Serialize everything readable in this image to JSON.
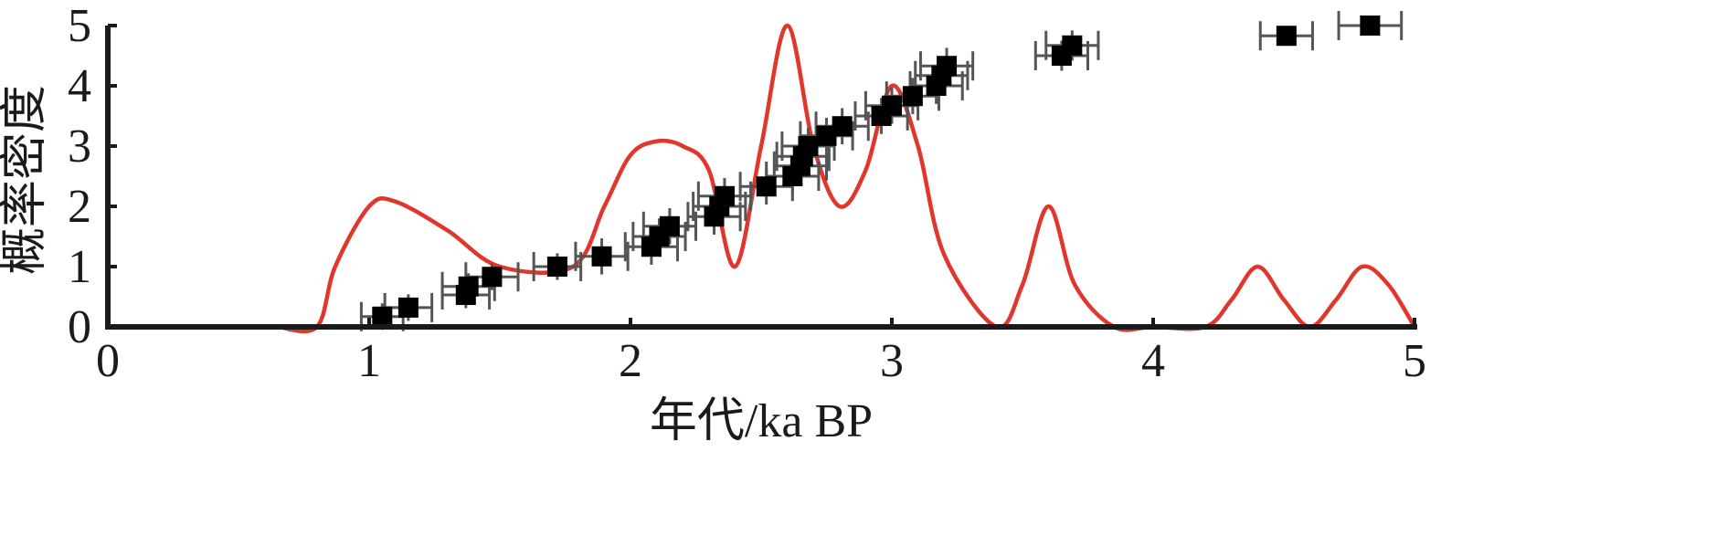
{
  "chart_data": {
    "type": "scatter",
    "title": "",
    "xlabel": "年代/ka BP",
    "ylabel": "概率密度",
    "xlim": [
      0,
      5
    ],
    "ylim": [
      0,
      5
    ],
    "x_ticks": [
      "0",
      "1",
      "2",
      "3",
      "4",
      "5"
    ],
    "y_ticks": [
      "0",
      "1",
      "2",
      "3",
      "4",
      "5"
    ],
    "grid": false,
    "legend": "none",
    "series": [
      {
        "type": "scatter",
        "color": "#000000",
        "marker": "square",
        "points": [
          {
            "x": 1.05,
            "y": 0.17,
            "xerr": 0.08,
            "yerr": 0.22
          },
          {
            "x": 1.15,
            "y": 0.32,
            "xerr": 0.09,
            "yerr": 0.22
          },
          {
            "x": 1.37,
            "y": 0.53,
            "xerr": 0.09,
            "yerr": 0.22
          },
          {
            "x": 1.38,
            "y": 0.67,
            "xerr": 0.1,
            "yerr": 0.22
          },
          {
            "x": 1.47,
            "y": 0.83,
            "xerr": 0.1,
            "yerr": 0.22
          },
          {
            "x": 1.72,
            "y": 1.0,
            "xerr": 0.09,
            "yerr": 0.22
          },
          {
            "x": 1.89,
            "y": 1.17,
            "xerr": 0.1,
            "yerr": 0.3
          },
          {
            "x": 2.08,
            "y": 1.33,
            "xerr": 0.1,
            "yerr": 0.3
          },
          {
            "x": 2.11,
            "y": 1.5,
            "xerr": 0.1,
            "yerr": 0.3
          },
          {
            "x": 2.15,
            "y": 1.67,
            "xerr": 0.1,
            "yerr": 0.3
          },
          {
            "x": 2.32,
            "y": 1.83,
            "xerr": 0.1,
            "yerr": 0.3
          },
          {
            "x": 2.34,
            "y": 2.0,
            "xerr": 0.1,
            "yerr": 0.3
          },
          {
            "x": 2.36,
            "y": 2.17,
            "xerr": 0.1,
            "yerr": 0.3
          },
          {
            "x": 2.52,
            "y": 2.33,
            "xerr": 0.1,
            "yerr": 0.3
          },
          {
            "x": 2.62,
            "y": 2.5,
            "xerr": 0.1,
            "yerr": 0.3
          },
          {
            "x": 2.65,
            "y": 2.67,
            "xerr": 0.1,
            "yerr": 0.3
          },
          {
            "x": 2.66,
            "y": 2.83,
            "xerr": 0.1,
            "yerr": 0.3
          },
          {
            "x": 2.68,
            "y": 3.0,
            "xerr": 0.1,
            "yerr": 0.3
          },
          {
            "x": 2.75,
            "y": 3.17,
            "xerr": 0.1,
            "yerr": 0.3
          },
          {
            "x": 2.81,
            "y": 3.33,
            "xerr": 0.1,
            "yerr": 0.3
          },
          {
            "x": 2.96,
            "y": 3.5,
            "xerr": 0.1,
            "yerr": 0.3
          },
          {
            "x": 3.0,
            "y": 3.67,
            "xerr": 0.1,
            "yerr": 0.3
          },
          {
            "x": 3.08,
            "y": 3.83,
            "xerr": 0.1,
            "yerr": 0.3
          },
          {
            "x": 3.17,
            "y": 4.0,
            "xerr": 0.1,
            "yerr": 0.3
          },
          {
            "x": 3.19,
            "y": 4.17,
            "xerr": 0.1,
            "yerr": 0.3
          },
          {
            "x": 3.21,
            "y": 4.33,
            "xerr": 0.1,
            "yerr": 0.3
          },
          {
            "x": 3.65,
            "y": 4.5,
            "xerr": 0.1,
            "yerr": 0.25
          },
          {
            "x": 3.69,
            "y": 4.67,
            "xerr": 0.1,
            "yerr": 0.25
          },
          {
            "x": 4.51,
            "y": 4.83,
            "xerr": 0.1,
            "yerr": 0.0
          },
          {
            "x": 4.83,
            "y": 5.0,
            "xerr": 0.12,
            "yerr": 0.0
          }
        ]
      },
      {
        "type": "line",
        "color": "#e0362c",
        "smooth": true,
        "points": [
          [
            0.65,
            0.0
          ],
          [
            0.8,
            0.0
          ],
          [
            0.87,
            1.0
          ],
          [
            1.0,
            2.0
          ],
          [
            1.1,
            2.08
          ],
          [
            1.3,
            1.6
          ],
          [
            1.5,
            1.0
          ],
          [
            1.78,
            1.0
          ],
          [
            1.9,
            2.0
          ],
          [
            2.0,
            2.85
          ],
          [
            2.1,
            3.08
          ],
          [
            2.2,
            3.0
          ],
          [
            2.3,
            2.6
          ],
          [
            2.4,
            1.0
          ],
          [
            2.5,
            3.0
          ],
          [
            2.6,
            5.0
          ],
          [
            2.7,
            3.0
          ],
          [
            2.8,
            2.0
          ],
          [
            2.9,
            2.6
          ],
          [
            3.0,
            4.0
          ],
          [
            3.1,
            3.0
          ],
          [
            3.2,
            1.2
          ],
          [
            3.4,
            0.0
          ],
          [
            3.5,
            0.7
          ],
          [
            3.6,
            2.0
          ],
          [
            3.7,
            0.7
          ],
          [
            3.85,
            0.0
          ],
          [
            4.0,
            0.0
          ],
          [
            4.2,
            0.0
          ],
          [
            4.3,
            0.45
          ],
          [
            4.4,
            1.0
          ],
          [
            4.5,
            0.45
          ],
          [
            4.6,
            0.0
          ],
          [
            4.7,
            0.45
          ],
          [
            4.8,
            1.0
          ],
          [
            4.9,
            0.7
          ],
          [
            5.0,
            0.0
          ]
        ]
      }
    ]
  }
}
